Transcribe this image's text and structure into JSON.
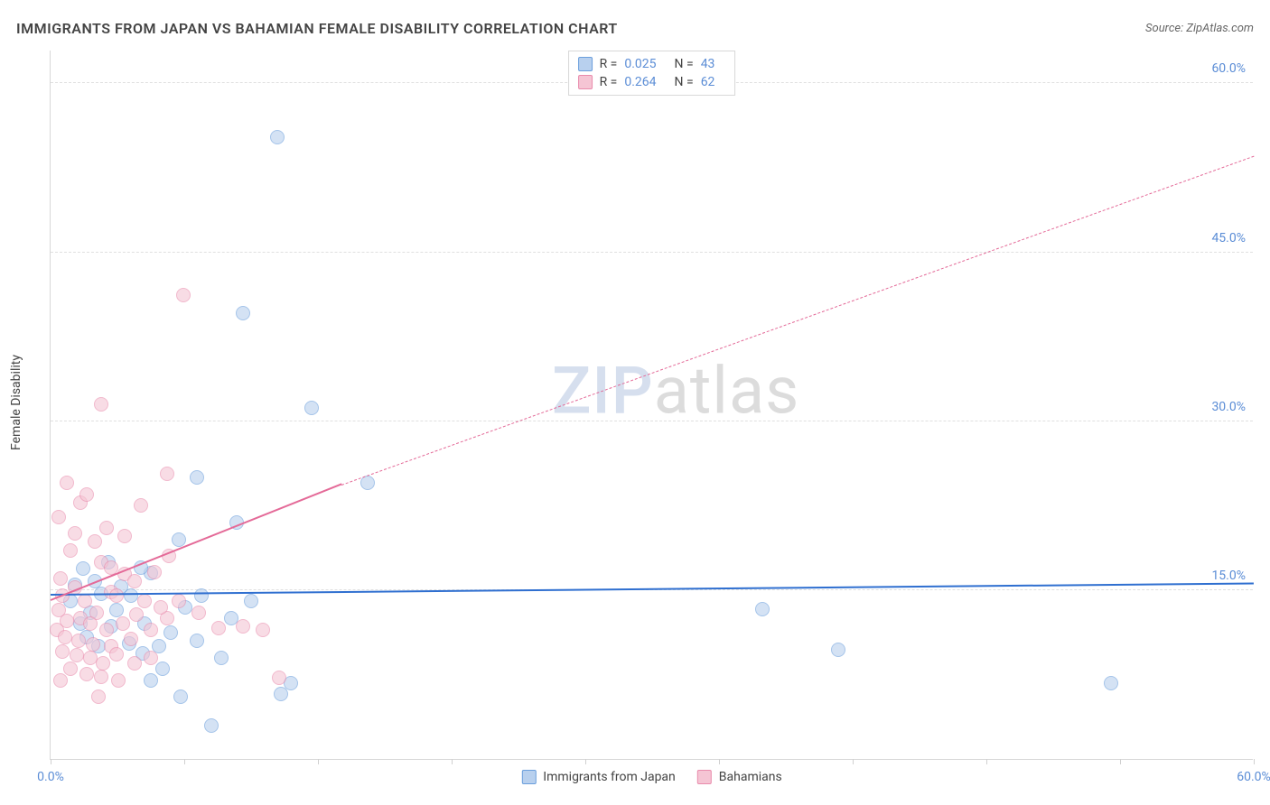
{
  "title": "IMMIGRANTS FROM JAPAN VS BAHAMIAN FEMALE DISABILITY CORRELATION CHART",
  "source_label": "Source: ZipAtlas.com",
  "y_axis_label": "Female Disability",
  "watermark": {
    "part1": "ZIP",
    "part2": "atlas"
  },
  "chart": {
    "type": "scatter",
    "xlim": [
      0,
      60
    ],
    "ylim": [
      0,
      63
    ],
    "x_ticks": [
      0,
      6.67,
      13.33,
      20,
      26.67,
      33.33,
      40,
      46.67,
      53.33,
      60
    ],
    "x_tick_labels": {
      "0": "0.0%",
      "60": "60.0%"
    },
    "y_gridlines": [
      15,
      30,
      45,
      60
    ],
    "y_tick_labels": {
      "15": "15.0%",
      "30": "30.0%",
      "45": "45.0%",
      "60": "60.0%"
    },
    "background_color": "#ffffff",
    "grid_color": "#e0e0e0",
    "axis_color": "#d8d8d8",
    "tick_label_color": "#5b8dd6",
    "point_radius": 8,
    "point_opacity": 0.6,
    "series": [
      {
        "key": "japan",
        "label": "Immigrants from Japan",
        "fill": "#b8d0ee",
        "stroke": "#6a9edc",
        "swatch_fill": "#b8d0ee",
        "swatch_border": "#6a9edc",
        "R": "0.025",
        "N": "43",
        "trend": {
          "x1": 0,
          "y1": 14.5,
          "x2": 60,
          "y2": 15.5,
          "color": "#2f6fd0",
          "width": 2,
          "dashed": false
        },
        "points": [
          [
            35.5,
            13.3
          ],
          [
            39.3,
            9.7
          ],
          [
            52.9,
            6.7
          ],
          [
            11.3,
            55.2
          ],
          [
            9.6,
            39.6
          ],
          [
            13.0,
            31.2
          ],
          [
            15.8,
            24.5
          ],
          [
            7.3,
            25.0
          ],
          [
            9.3,
            21.0
          ],
          [
            6.4,
            19.5
          ],
          [
            5.0,
            16.5
          ],
          [
            4.0,
            14.5
          ],
          [
            4.7,
            12.0
          ],
          [
            3.3,
            13.2
          ],
          [
            3.0,
            11.8
          ],
          [
            2.5,
            14.7
          ],
          [
            2.0,
            13.0
          ],
          [
            1.5,
            12.0
          ],
          [
            1.8,
            10.8
          ],
          [
            2.4,
            10.0
          ],
          [
            3.9,
            10.3
          ],
          [
            4.6,
            9.4
          ],
          [
            5.4,
            10.0
          ],
          [
            5.6,
            8.0
          ],
          [
            5.0,
            7.0
          ],
          [
            6.0,
            11.2
          ],
          [
            6.7,
            13.5
          ],
          [
            7.5,
            14.5
          ],
          [
            7.3,
            10.5
          ],
          [
            8.5,
            9.0
          ],
          [
            8.0,
            3.0
          ],
          [
            6.5,
            5.5
          ],
          [
            11.5,
            5.8
          ],
          [
            12.0,
            6.7
          ],
          [
            9.0,
            12.5
          ],
          [
            10.0,
            14.0
          ],
          [
            4.5,
            17.0
          ],
          [
            3.5,
            15.3
          ],
          [
            2.9,
            17.5
          ],
          [
            1.2,
            15.5
          ],
          [
            1.0,
            14.0
          ],
          [
            1.6,
            16.9
          ],
          [
            2.2,
            15.8
          ]
        ]
      },
      {
        "key": "bahamians",
        "label": "Bahamians",
        "fill": "#f5c5d4",
        "stroke": "#e98bac",
        "swatch_fill": "#f5c5d4",
        "swatch_border": "#e98bac",
        "R": "0.264",
        "N": "62",
        "trend_solid": {
          "x1": 0,
          "y1": 14.0,
          "x2": 14.5,
          "y2": 24.3,
          "color": "#e46a98",
          "width": 2,
          "dashed": false
        },
        "trend": {
          "x1": 14.5,
          "y1": 24.3,
          "x2": 60,
          "y2": 53.5,
          "color": "#e46a98",
          "width": 1,
          "dashed": true
        },
        "points": [
          [
            6.6,
            41.2
          ],
          [
            2.5,
            31.5
          ],
          [
            5.8,
            25.3
          ],
          [
            4.5,
            22.5
          ],
          [
            1.5,
            22.8
          ],
          [
            2.2,
            19.3
          ],
          [
            3.7,
            19.8
          ],
          [
            1.0,
            18.5
          ],
          [
            2.5,
            17.5
          ],
          [
            3.7,
            16.4
          ],
          [
            0.5,
            16.0
          ],
          [
            1.2,
            15.2
          ],
          [
            0.6,
            14.5
          ],
          [
            1.7,
            14.0
          ],
          [
            0.4,
            13.2
          ],
          [
            2.3,
            13.0
          ],
          [
            3.0,
            14.8
          ],
          [
            0.8,
            12.3
          ],
          [
            1.5,
            12.5
          ],
          [
            2.0,
            12.0
          ],
          [
            0.3,
            11.5
          ],
          [
            2.8,
            11.5
          ],
          [
            3.6,
            12.0
          ],
          [
            4.3,
            12.8
          ],
          [
            0.7,
            10.8
          ],
          [
            1.4,
            10.5
          ],
          [
            2.1,
            10.2
          ],
          [
            3.0,
            10.0
          ],
          [
            4.0,
            10.7
          ],
          [
            5.0,
            11.5
          ],
          [
            5.8,
            12.5
          ],
          [
            6.4,
            14.0
          ],
          [
            7.4,
            13.0
          ],
          [
            8.4,
            11.6
          ],
          [
            9.6,
            11.8
          ],
          [
            10.6,
            11.5
          ],
          [
            11.4,
            7.2
          ],
          [
            0.6,
            9.5
          ],
          [
            1.3,
            9.2
          ],
          [
            2.0,
            9.0
          ],
          [
            2.6,
            8.5
          ],
          [
            3.3,
            9.3
          ],
          [
            4.2,
            8.5
          ],
          [
            5.0,
            9.0
          ],
          [
            1.0,
            8.0
          ],
          [
            1.8,
            7.5
          ],
          [
            2.5,
            7.3
          ],
          [
            3.4,
            7.0
          ],
          [
            0.5,
            7.0
          ],
          [
            2.4,
            5.5
          ],
          [
            3.3,
            14.5
          ],
          [
            4.2,
            15.8
          ],
          [
            5.2,
            16.6
          ],
          [
            5.9,
            18.0
          ],
          [
            2.8,
            20.5
          ],
          [
            1.2,
            20.0
          ],
          [
            1.8,
            23.5
          ],
          [
            0.8,
            24.5
          ],
          [
            0.4,
            21.5
          ],
          [
            3.0,
            17.0
          ],
          [
            4.7,
            14.0
          ],
          [
            5.5,
            13.5
          ]
        ]
      }
    ]
  },
  "legend_top_labels": {
    "R": "R =",
    "N": "N ="
  },
  "bottom_legend": [
    {
      "label_key": "japan"
    },
    {
      "label_key": "bahamians"
    }
  ]
}
